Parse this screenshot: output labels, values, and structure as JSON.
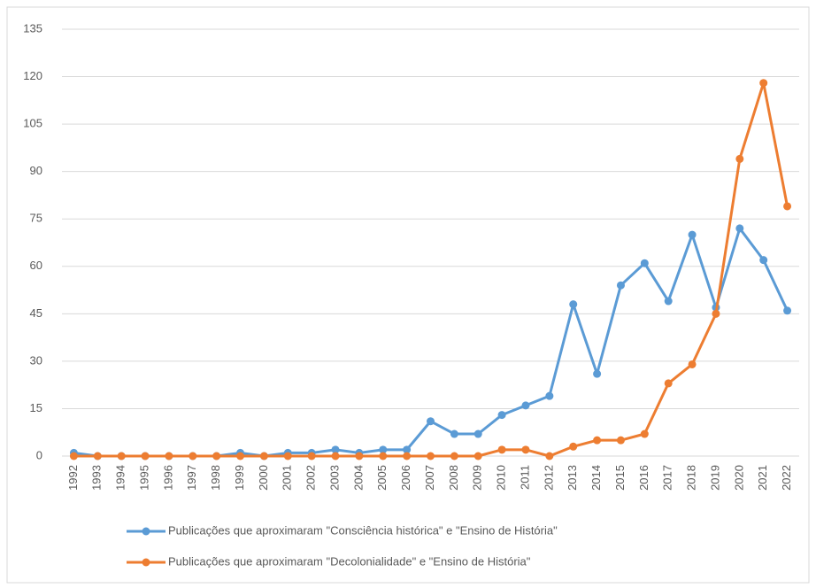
{
  "chart_data": {
    "type": "line",
    "categories": [
      "1992",
      "1993",
      "1994",
      "1995",
      "1996",
      "1997",
      "1998",
      "1999",
      "2000",
      "2001",
      "2002",
      "2003",
      "2004",
      "2005",
      "2006",
      "2007",
      "2008",
      "2009",
      "2010",
      "2011",
      "2012",
      "2013",
      "2014",
      "2015",
      "2016",
      "2017",
      "2018",
      "2019",
      "2020",
      "2021",
      "2022"
    ],
    "series": [
      {
        "name": "Publicações que aproximaram \"Consciência histórica\" e \"Ensino de História\"",
        "color": "#5b9bd5",
        "values": [
          1,
          0,
          0,
          0,
          0,
          0,
          0,
          1,
          0,
          1,
          1,
          2,
          1,
          2,
          2,
          11,
          7,
          7,
          13,
          16,
          19,
          48,
          26,
          54,
          61,
          49,
          70,
          47,
          72,
          62,
          46
        ]
      },
      {
        "name": "Publicações que aproximaram \"Decolonialidade\" e \"Ensino de História\"",
        "color": "#ed7d31",
        "values": [
          0,
          0,
          0,
          0,
          0,
          0,
          0,
          0,
          0,
          0,
          0,
          0,
          0,
          0,
          0,
          0,
          0,
          0,
          2,
          2,
          0,
          3,
          5,
          5,
          7,
          23,
          29,
          45,
          94,
          118,
          79
        ]
      }
    ],
    "ylim": [
      0,
      135
    ],
    "yticks": [
      0,
      15,
      30,
      45,
      60,
      75,
      90,
      105,
      120,
      135
    ],
    "grid": true,
    "legend": "bottom"
  }
}
